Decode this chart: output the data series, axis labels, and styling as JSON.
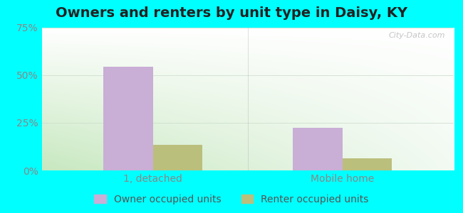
{
  "title": "Owners and renters by unit type in Daisy, KY",
  "categories": [
    "1, detached",
    "Mobile home"
  ],
  "owner_values": [
    54.5,
    22.5
  ],
  "renter_values": [
    13.5,
    6.5
  ],
  "owner_color": "#c9aed6",
  "renter_color": "#bbbf7c",
  "ylim": [
    0,
    75
  ],
  "yticks": [
    0,
    25,
    50,
    75
  ],
  "yticklabels": [
    "0%",
    "25%",
    "50%",
    "75%"
  ],
  "bar_width": 0.12,
  "group_centers": [
    0.27,
    0.73
  ],
  "outer_bg": "#00ffff",
  "title_fontsize": 14,
  "tick_fontsize": 10,
  "legend_fontsize": 10,
  "watermark": "City-Data.com",
  "bg_left_color": "#d4ead4",
  "bg_right_color": "#f0f8ee",
  "bg_top_color": "#ffffff"
}
